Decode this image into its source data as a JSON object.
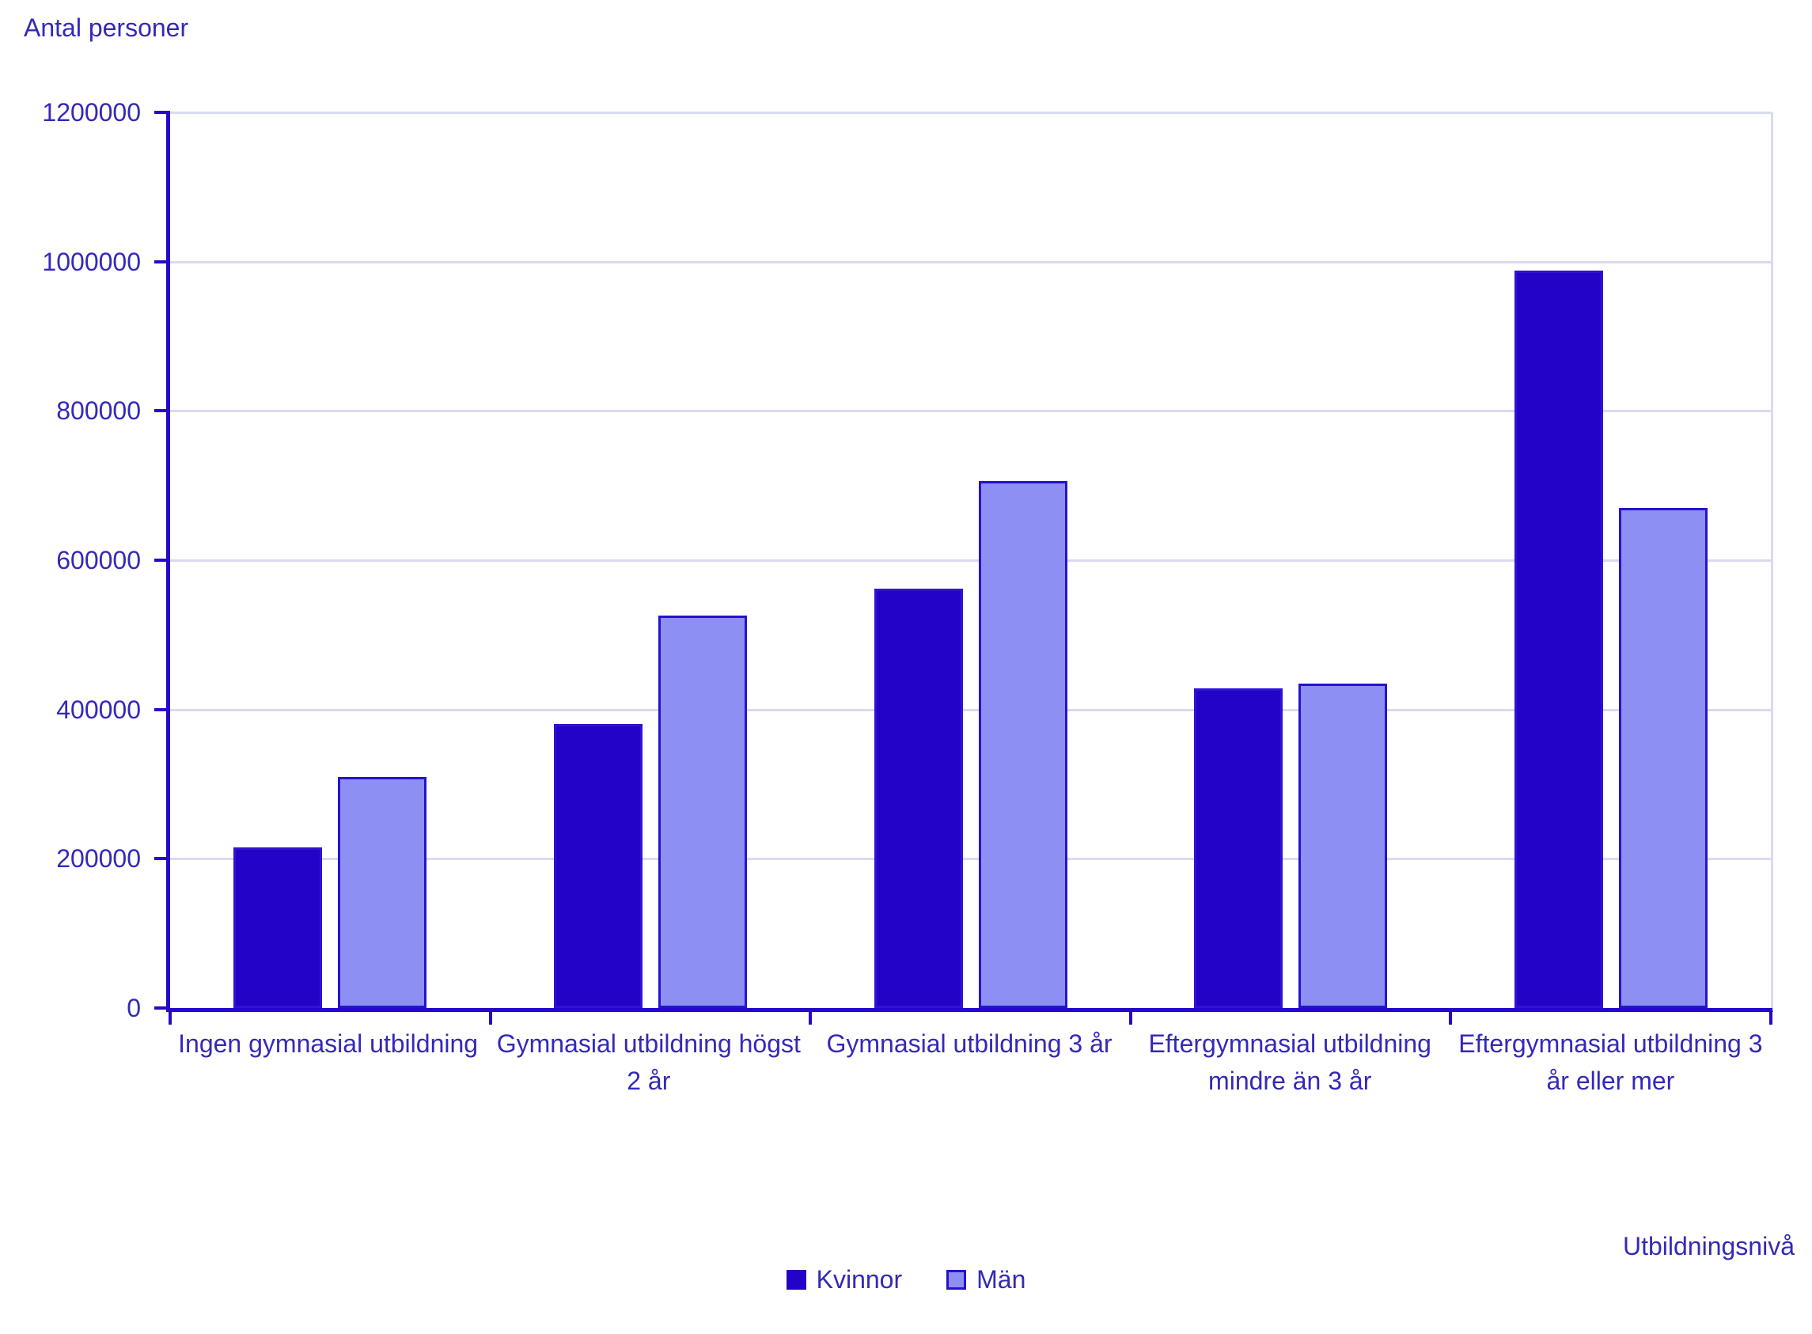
{
  "chart": {
    "y_axis_title": "Antal personer",
    "x_axis_title": "Utbildningsnivå"
  },
  "colors": {
    "axis": "#2508c9",
    "gridline": "#d9daf2",
    "text": "#3329b8",
    "kvinnor_fill": "#2403c9",
    "kvinnor_border": "#2e14d0",
    "man_fill": "#8e8ff2",
    "man_border": "#2513cd"
  },
  "chart_data": {
    "type": "bar",
    "title": "",
    "categories": [
      "Ingen gymnasial utbildning",
      "Gymnasial utbildning högst 2 år",
      "Gymnasial utbildning 3 år",
      "Eftergymnasial utbildning mindre än 3 år",
      "Eftergymnasial utbildning 3 år eller mer"
    ],
    "series": [
      {
        "name": "Kvinnor",
        "fill": "#2403c9",
        "border": "#2e14d0",
        "values": [
          215000,
          381000,
          562000,
          428000,
          988000
        ]
      },
      {
        "name": "Män",
        "fill": "#8e8ff2",
        "border": "#2513cd",
        "values": [
          310000,
          526000,
          706000,
          435000,
          670000
        ]
      }
    ],
    "xlabel": "Utbildningsnivå",
    "ylabel": "Antal personer",
    "ylim": [
      0,
      1200000
    ],
    "ytick_step": 200000,
    "ytick_labels": [
      "0",
      "200000",
      "400000",
      "600000",
      "800000",
      "1000000",
      "1200000"
    ],
    "grid": true,
    "legend_position": "bottom"
  }
}
